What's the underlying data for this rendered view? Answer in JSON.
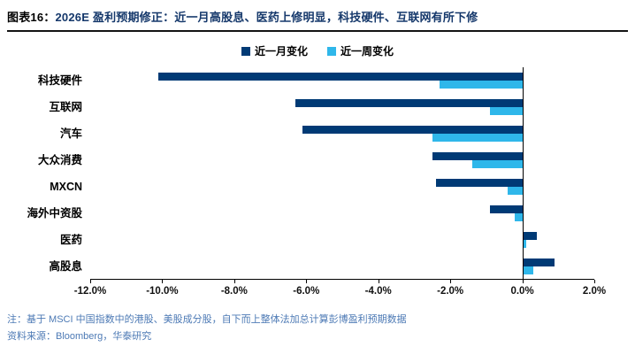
{
  "header": {
    "label": "图表16：",
    "title": "2026E 盈利预期修正：近一月高股息、医药上修明显，科技硬件、互联网有所下修"
  },
  "chart_data": {
    "type": "bar",
    "orientation": "horizontal",
    "title": "2026E 盈利预期修正",
    "categories": [
      "科技硬件",
      "互联网",
      "汽车",
      "大众消费",
      "MXCN",
      "海外中资股",
      "医药",
      "高股息"
    ],
    "series": [
      {
        "name": "近一月变化",
        "color": "#003a75",
        "values": [
          -10.1,
          -6.3,
          -6.1,
          -2.5,
          -2.4,
          -0.9,
          0.4,
          0.9
        ]
      },
      {
        "name": "近一周变化",
        "color": "#2fb7ea",
        "values": [
          -2.3,
          -0.9,
          -2.5,
          -1.4,
          -0.4,
          -0.2,
          0.1,
          0.3
        ]
      }
    ],
    "xlim": [
      -12,
      2
    ],
    "x_ticks": [
      "-12.0%",
      "-10.0%",
      "-8.0%",
      "-6.0%",
      "-4.0%",
      "-2.0%",
      "0.0%",
      "2.0%"
    ],
    "legend_position": "top-center",
    "grid": false,
    "unit": "%"
  },
  "footer": {
    "note": "注：基于 MSCI 中国指数中的港股、美股成分股，自下而上整体法加总计算彭博盈利预期数据",
    "source": "资料来源：Bloomberg，华泰研究"
  }
}
